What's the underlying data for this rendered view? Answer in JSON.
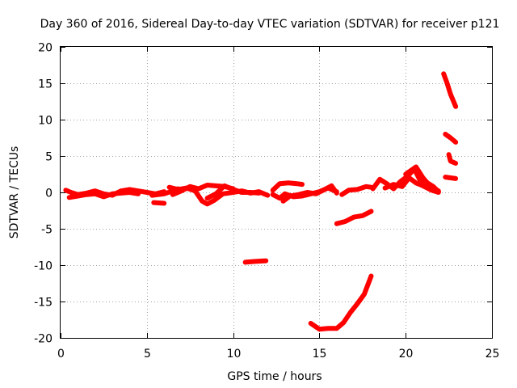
{
  "chart_data": {
    "type": "line",
    "title": "Day 360 of 2016, Sidereal Day-to-day VTEC variation (SDTVAR) for receiver p121",
    "xlabel": "GPS time / hours",
    "ylabel": "SDTVAR / TECUs",
    "xlim": [
      0,
      25
    ],
    "ylim": [
      -20,
      20
    ],
    "xticks": [
      0,
      5,
      10,
      15,
      20,
      25
    ],
    "yticks": [
      -20,
      -15,
      -10,
      -5,
      0,
      5,
      10,
      15,
      20
    ],
    "grid": true,
    "colors": {
      "series": "#ff0000"
    },
    "series": [
      {
        "values": [
          [
            0.3,
            0.3
          ],
          [
            0.6,
            0.0
          ],
          [
            1.0,
            -0.3
          ],
          [
            1.5,
            -0.1
          ],
          [
            2.0,
            0.2
          ],
          [
            2.5,
            -0.2
          ],
          [
            3.0,
            -0.4
          ],
          [
            3.5,
            0.2
          ],
          [
            4.0,
            0.4
          ],
          [
            4.5,
            0.2
          ],
          [
            5.0,
            0.0
          ],
          [
            5.5,
            -0.2
          ],
          [
            6.0,
            0.1
          ]
        ]
      },
      {
        "values": [
          [
            0.5,
            -0.7
          ],
          [
            1.0,
            -0.5
          ],
          [
            1.5,
            -0.3
          ],
          [
            2.0,
            -0.2
          ],
          [
            2.5,
            -0.6
          ],
          [
            3.0,
            -0.2
          ],
          [
            3.5,
            -0.1
          ],
          [
            4.0,
            0.0
          ],
          [
            4.5,
            -0.2
          ]
        ]
      },
      {
        "values": [
          [
            5.4,
            -1.4
          ],
          [
            6.0,
            -1.5
          ]
        ]
      },
      {
        "values": [
          [
            5.3,
            -0.4
          ],
          [
            6.0,
            -0.2
          ],
          [
            6.5,
            0.2
          ],
          [
            6.8,
            0.5
          ]
        ]
      },
      {
        "values": [
          [
            6.3,
            0.7
          ],
          [
            6.8,
            0.4
          ],
          [
            7.3,
            0.6
          ],
          [
            7.8,
            0.2
          ],
          [
            8.2,
            -1.2
          ],
          [
            8.5,
            -1.6
          ],
          [
            8.9,
            -1.1
          ],
          [
            9.4,
            -0.2
          ],
          [
            10.0,
            0.0
          ],
          [
            10.5,
            0.2
          ],
          [
            11.0,
            -0.1
          ],
          [
            11.5,
            0.1
          ],
          [
            12.0,
            -0.4
          ]
        ]
      },
      {
        "values": [
          [
            6.5,
            -0.3
          ],
          [
            7.0,
            0.2
          ],
          [
            7.5,
            0.8
          ],
          [
            8.0,
            0.5
          ],
          [
            8.5,
            1.0
          ],
          [
            9.0,
            0.9
          ],
          [
            9.5,
            0.8
          ],
          [
            10.0,
            0.5
          ]
        ]
      },
      {
        "values": [
          [
            8.5,
            -0.8
          ],
          [
            9.0,
            -0.2
          ],
          [
            9.5,
            0.9
          ],
          [
            10.0,
            0.4
          ],
          [
            10.5,
            0.0
          ],
          [
            11.0,
            0.0
          ],
          [
            11.5,
            -0.1
          ]
        ]
      },
      {
        "values": [
          [
            10.7,
            -9.6
          ],
          [
            11.2,
            -9.5
          ],
          [
            11.9,
            -9.4
          ]
        ]
      },
      {
        "values": [
          [
            12.3,
            0.3
          ],
          [
            12.7,
            1.2
          ],
          [
            13.2,
            1.3
          ],
          [
            13.7,
            1.2
          ],
          [
            14.0,
            1.1
          ]
        ]
      },
      {
        "values": [
          [
            12.3,
            -0.3
          ],
          [
            12.7,
            -0.8
          ],
          [
            13.0,
            -0.2
          ],
          [
            13.5,
            -0.6
          ],
          [
            14.0,
            -0.5
          ],
          [
            14.5,
            -0.2
          ],
          [
            15.0,
            0.1
          ],
          [
            15.5,
            0.6
          ],
          [
            16.0,
            0.1
          ]
        ]
      },
      {
        "values": [
          [
            12.9,
            -1.2
          ],
          [
            13.3,
            -0.5
          ],
          [
            13.8,
            -0.3
          ],
          [
            14.3,
            0.0
          ],
          [
            14.8,
            -0.2
          ],
          [
            15.3,
            0.4
          ],
          [
            15.7,
            0.9
          ],
          [
            16.0,
            -0.1
          ]
        ]
      },
      {
        "values": [
          [
            16.3,
            -0.3
          ],
          [
            16.7,
            0.3
          ],
          [
            17.2,
            0.4
          ],
          [
            17.7,
            0.8
          ],
          [
            18.0,
            0.7
          ]
        ]
      },
      {
        "values": [
          [
            16.0,
            -4.3
          ],
          [
            16.5,
            -4.0
          ],
          [
            17.0,
            -3.4
          ],
          [
            17.5,
            -3.2
          ],
          [
            18.0,
            -2.6
          ]
        ]
      },
      {
        "values": [
          [
            14.5,
            -18.0
          ],
          [
            15.0,
            -18.8
          ],
          [
            15.5,
            -18.7
          ],
          [
            16.0,
            -18.7
          ],
          [
            16.4,
            -17.9
          ],
          [
            16.8,
            -16.5
          ],
          [
            17.2,
            -15.3
          ],
          [
            17.6,
            -14.0
          ],
          [
            18.0,
            -11.5
          ]
        ]
      },
      {
        "values": [
          [
            18.1,
            0.5
          ],
          [
            18.5,
            1.8
          ],
          [
            18.9,
            1.2
          ],
          [
            19.3,
            0.5
          ],
          [
            19.7,
            1.5
          ],
          [
            20.1,
            2.2
          ],
          [
            20.5,
            3.2
          ],
          [
            20.8,
            1.8
          ],
          [
            21.2,
            1.4
          ],
          [
            21.6,
            0.8
          ],
          [
            21.9,
            0.1
          ]
        ]
      },
      {
        "values": [
          [
            18.8,
            0.6
          ],
          [
            19.3,
            1.1
          ],
          [
            19.8,
            0.8
          ],
          [
            20.2,
            2.0
          ],
          [
            20.6,
            1.3
          ],
          [
            21.0,
            0.9
          ],
          [
            21.5,
            0.3
          ],
          [
            21.9,
            0.0
          ]
        ]
      },
      {
        "values": [
          [
            20.0,
            2.5
          ],
          [
            20.3,
            3.0
          ],
          [
            20.6,
            3.5
          ],
          [
            21.0,
            2.0
          ],
          [
            21.4,
            0.9
          ],
          [
            21.9,
            0.2
          ]
        ]
      },
      {
        "values": [
          [
            22.2,
            16.3
          ],
          [
            22.4,
            15.0
          ],
          [
            22.6,
            13.5
          ],
          [
            22.9,
            11.8
          ]
        ]
      },
      {
        "values": [
          [
            22.3,
            8.0
          ],
          [
            22.6,
            7.5
          ],
          [
            22.9,
            6.9
          ]
        ]
      },
      {
        "values": [
          [
            22.5,
            5.2
          ],
          [
            22.6,
            4.3
          ],
          [
            22.9,
            4.0
          ]
        ]
      },
      {
        "values": [
          [
            22.3,
            2.1
          ],
          [
            22.6,
            2.0
          ],
          [
            22.9,
            1.9
          ]
        ]
      }
    ]
  }
}
